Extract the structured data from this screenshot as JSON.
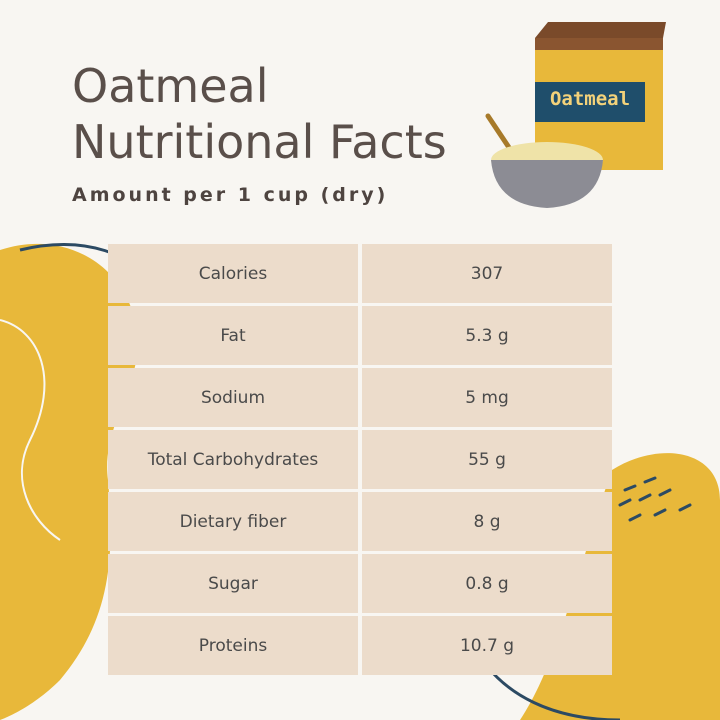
{
  "header": {
    "title": "Oatmeal Nutritional Facts",
    "subtitle": "Amount per 1 cup (dry)",
    "box_label": "Oatmeal"
  },
  "table": {
    "rows": [
      [
        "Calories",
        "307"
      ],
      [
        "Fat",
        "5.3 g"
      ],
      [
        "Sodium",
        "5 mg"
      ],
      [
        "Total Carbohydrates",
        "55 g"
      ],
      [
        "Dietary fiber",
        "8 g"
      ],
      [
        "Sugar",
        "0.8 g"
      ],
      [
        "Proteins",
        "10.7 g"
      ]
    ]
  }
}
